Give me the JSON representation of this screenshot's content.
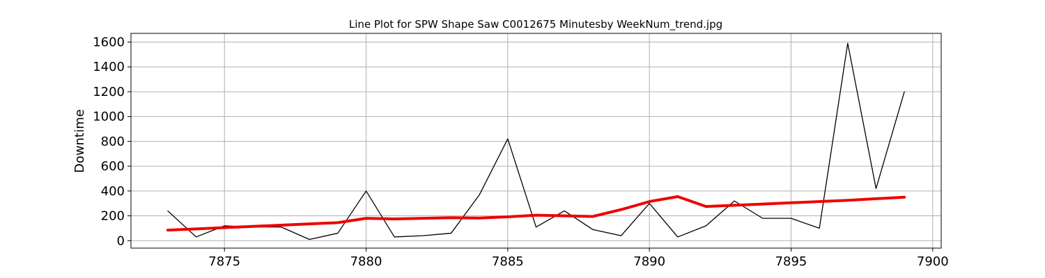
{
  "chart_data": {
    "type": "line",
    "title": "Line Plot for SPW Shape Saw C0012675 Minutesby WeekNum_trend.jpg",
    "xlabel": "",
    "ylabel": "Downtime",
    "xlim": [
      7871.7,
      7900.3
    ],
    "ylim": [
      -60,
      1670
    ],
    "x_ticks": [
      7875,
      7880,
      7885,
      7890,
      7895,
      7900
    ],
    "y_ticks": [
      0,
      200,
      400,
      600,
      800,
      1000,
      1200,
      1400,
      1600
    ],
    "grid": true,
    "series": [
      {
        "color": "#000000",
        "x": [
          7873,
          7874,
          7875,
          7876,
          7877,
          7878,
          7879,
          7880,
          7881,
          7882,
          7883,
          7884,
          7885,
          7886,
          7887,
          7888,
          7889,
          7890,
          7891,
          7892,
          7893,
          7894,
          7895,
          7896,
          7897,
          7898,
          7899
        ],
        "y": [
          240,
          30,
          120,
          110,
          110,
          10,
          60,
          400,
          30,
          40,
          60,
          370,
          820,
          110,
          240,
          90,
          40,
          300,
          30,
          120,
          320,
          180,
          180,
          100,
          1590,
          420,
          1200
        ]
      },
      {
        "color": "#ee0000",
        "x": [
          7873,
          7874,
          7875,
          7876,
          7877,
          7878,
          7879,
          7880,
          7881,
          7882,
          7883,
          7884,
          7885,
          7886,
          7887,
          7888,
          7889,
          7890,
          7891,
          7892,
          7893,
          7894,
          7895,
          7896,
          7897,
          7898,
          7899
        ],
        "y": [
          85,
          95,
          105,
          115,
          125,
          135,
          145,
          180,
          175,
          180,
          185,
          182,
          192,
          205,
          200,
          195,
          250,
          315,
          355,
          275,
          285,
          295,
          305,
          315,
          325,
          338,
          350
        ]
      }
    ]
  }
}
